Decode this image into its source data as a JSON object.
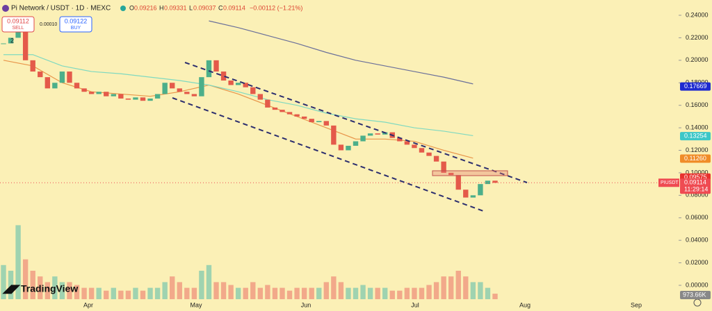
{
  "header": {
    "symbol": "Pi Network / USDT · 1D · MEXC",
    "open_label": "O",
    "open": "0.09216",
    "high_label": "H",
    "high": "0.09331",
    "low_label": "L",
    "low": "0.09037",
    "close_label": "C",
    "close": "0.09114",
    "change": "−0.00112 (−1.21%)"
  },
  "trade": {
    "sell_price": "0.09112",
    "sell": "SELL",
    "spread": "0.00010",
    "buy_price": "0.09122",
    "buy": "BUY",
    "layers": "2"
  },
  "chart_data": {
    "type": "candlestick",
    "ylim": [
      0,
      0.24
    ],
    "yticks": [
      {
        "value": 0,
        "label": "0.00000"
      },
      {
        "value": 0.02,
        "label": "0.02000"
      },
      {
        "value": 0.04,
        "label": "0.04000"
      },
      {
        "value": 0.06,
        "label": "0.06000"
      },
      {
        "value": 0.08,
        "label": "0.08000"
      },
      {
        "value": 0.1,
        "label": "0.10000"
      },
      {
        "value": 0.12,
        "label": "0.12000"
      },
      {
        "value": 0.14,
        "label": "0.14000"
      },
      {
        "value": 0.16,
        "label": "0.16000"
      },
      {
        "value": 0.18,
        "label": "0.18000"
      },
      {
        "value": 0.2,
        "label": "0.20000"
      },
      {
        "value": 0.22,
        "label": "0.22000"
      },
      {
        "value": 0.24,
        "label": "0.24000"
      }
    ],
    "months": [
      "Apr",
      "May",
      "Jun",
      "Jul",
      "Aug",
      "Sep"
    ],
    "closes": [
      0.215,
      0.22,
      0.225,
      0.2,
      0.19,
      0.185,
      0.175,
      0.18,
      0.19,
      0.18,
      0.175,
      0.172,
      0.17,
      0.172,
      0.168,
      0.17,
      0.166,
      0.165,
      0.167,
      0.164,
      0.166,
      0.17,
      0.18,
      0.175,
      0.172,
      0.17,
      0.168,
      0.185,
      0.2,
      0.19,
      0.182,
      0.178,
      0.18,
      0.176,
      0.17,
      0.165,
      0.158,
      0.156,
      0.154,
      0.152,
      0.15,
      0.148,
      0.145,
      0.146,
      0.142,
      0.125,
      0.12,
      0.124,
      0.128,
      0.133,
      0.135,
      0.134,
      0.136,
      0.131,
      0.128,
      0.125,
      0.122,
      0.118,
      0.115,
      0.11,
      0.1,
      0.098,
      0.085,
      0.078,
      0.08,
      0.09,
      0.093,
      0.0911
    ],
    "volumes": [
      6,
      5,
      13,
      7,
      5,
      4,
      3,
      4,
      3,
      3,
      2.5,
      2,
      2,
      2,
      1.5,
      2,
      1.5,
      1.5,
      2,
      1.5,
      2,
      2,
      3,
      4,
      3,
      2,
      2,
      5,
      6,
      3,
      3,
      2.5,
      2,
      2,
      3,
      2,
      2.5,
      2,
      2,
      1.5,
      2,
      2,
      2,
      2,
      3,
      4,
      3,
      2,
      2,
      2.5,
      2,
      2,
      2,
      1.5,
      1.5,
      2,
      2,
      2,
      2.5,
      3,
      4,
      4,
      5,
      4,
      3,
      3,
      2,
      0.97
    ],
    "ma_lines": [
      {
        "color": "#e8954a",
        "values": [
          0.2,
          0.195,
          0.18,
          0.172,
          0.17,
          0.168,
          0.172,
          0.178,
          0.17,
          0.16,
          0.15,
          0.14,
          0.13,
          0.13,
          0.128,
          0.12,
          0.113
        ]
      },
      {
        "color": "#7fd9c0",
        "values": [
          0.205,
          0.205,
          0.195,
          0.19,
          0.188,
          0.185,
          0.182,
          0.178,
          0.172,
          0.165,
          0.16,
          0.153,
          0.148,
          0.145,
          0.14,
          0.137,
          0.133
        ]
      },
      {
        "color": "#6a6f9a",
        "values": [
          null,
          null,
          null,
          null,
          null,
          null,
          null,
          0.235,
          0.229,
          0.222,
          0.215,
          0.207,
          0.2,
          0.195,
          0.19,
          0.185,
          0.179
        ]
      }
    ],
    "price_tags": [
      {
        "value": 0.17669,
        "label": "0.17669",
        "color": "#1f2bd0"
      },
      {
        "value": 0.13254,
        "label": "0.13254",
        "color": "#3cc7c7"
      },
      {
        "value": 0.1126,
        "label": "0.11260",
        "color": "#f08c28"
      },
      {
        "value": 0.09575,
        "label": "0.09575",
        "color": "#e8322e"
      }
    ],
    "last": {
      "symbol": "PIUSDT",
      "value": 0.09114,
      "label": "0.09114",
      "countdown": "11:29:14",
      "color": "#ef4b52"
    },
    "volume_label": "973.66K"
  },
  "brand": "TradingView"
}
